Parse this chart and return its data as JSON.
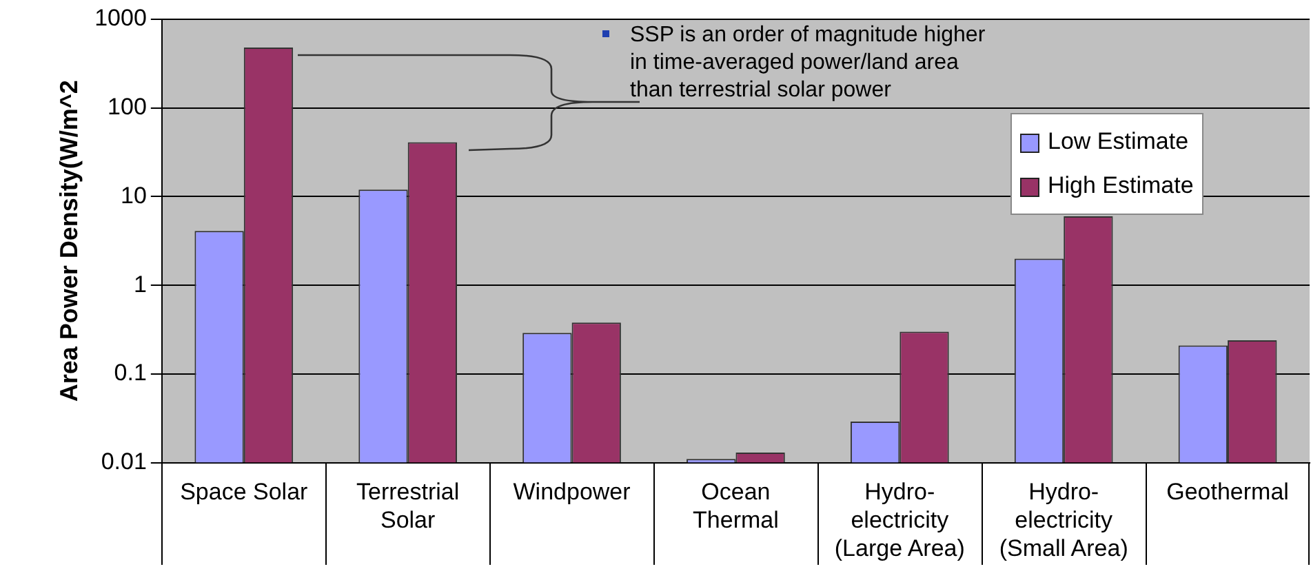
{
  "chart_data": {
    "type": "bar",
    "ylabel": "Area Power Density(W/m^2",
    "categories": [
      "Space Solar",
      "Terrestrial\nSolar",
      "Windpower",
      "Ocean\nThermal",
      "Hydro-\nelectricity\n(Large Area)",
      "Hydro-\nelectricity\n(Small Area)",
      "Geothermal"
    ],
    "series": [
      {
        "name": "Low Estimate",
        "color": "#9999ff",
        "values": [
          4.1,
          12,
          0.29,
          0.011,
          0.029,
          2,
          0.21
        ]
      },
      {
        "name": "High Estimate",
        "color": "#993366",
        "values": [
          480,
          41,
          0.38,
          0.013,
          0.3,
          6,
          0.24
        ]
      }
    ],
    "log": "y",
    "ylim": [
      0.01,
      1000
    ],
    "yticks": [
      0.01,
      0.1,
      1,
      10,
      100,
      1000
    ],
    "grid": "y",
    "legend": "top right",
    "annotations": [
      "SSP is an order of magnitude higher\nin time-averaged power/land area\nthan terrestrial solar power"
    ]
  }
}
